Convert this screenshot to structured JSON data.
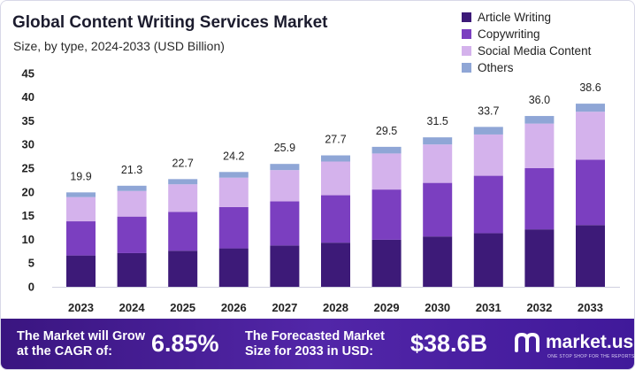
{
  "header": {
    "title": "Global Content Writing Services Market",
    "subtitle": "Size, by type, 2024-2033 (USD Billion)"
  },
  "chart_data": {
    "type": "bar",
    "stacked": true,
    "categories": [
      "2023",
      "2024",
      "2025",
      "2026",
      "2027",
      "2028",
      "2029",
      "2030",
      "2031",
      "2032",
      "2033"
    ],
    "totals": [
      19.9,
      21.3,
      22.7,
      24.2,
      25.9,
      27.7,
      29.5,
      31.5,
      33.7,
      36.0,
      38.6
    ],
    "total_labels": [
      "19.9",
      "21.3",
      "22.7",
      "24.2",
      "25.9",
      "27.7",
      "29.5",
      "31.5",
      "33.7",
      "36.0",
      "38.6"
    ],
    "series": [
      {
        "name": "Article Writing",
        "color": "#3d1a78",
        "values": [
          6.6,
          7.1,
          7.6,
          8.1,
          8.7,
          9.3,
          9.9,
          10.6,
          11.3,
          12.1,
          13.0
        ]
      },
      {
        "name": "Copywriting",
        "color": "#7b3fc0",
        "values": [
          7.2,
          7.7,
          8.2,
          8.7,
          9.3,
          10.0,
          10.6,
          11.3,
          12.1,
          12.9,
          13.8
        ]
      },
      {
        "name": "Social Media Content",
        "color": "#d4b2ec",
        "values": [
          5.1,
          5.4,
          5.8,
          6.2,
          6.6,
          7.1,
          7.6,
          8.1,
          8.7,
          9.4,
          10.1
        ]
      },
      {
        "name": "Others",
        "color": "#8fa6d6",
        "values": [
          1.0,
          1.1,
          1.1,
          1.2,
          1.3,
          1.3,
          1.4,
          1.5,
          1.6,
          1.6,
          1.7
        ]
      }
    ],
    "yticks": [
      "0",
      "5",
      "10",
      "15",
      "20",
      "25",
      "30",
      "35",
      "40",
      "45"
    ],
    "ylim": [
      0,
      45
    ],
    "legend_position": "top-right",
    "grid": false
  },
  "footer": {
    "cagr_text": "The Market will Grow\nat the CAGR of:",
    "cagr_value": "6.85%",
    "forecast_text": "The Forecasted Market\nSize for 2033 in USD:",
    "forecast_value": "$38.6B",
    "brand_name": "market.us",
    "brand_tagline": "ONE STOP SHOP FOR THE REPORTS",
    "logo_icon": "market-us-logo-icon"
  }
}
